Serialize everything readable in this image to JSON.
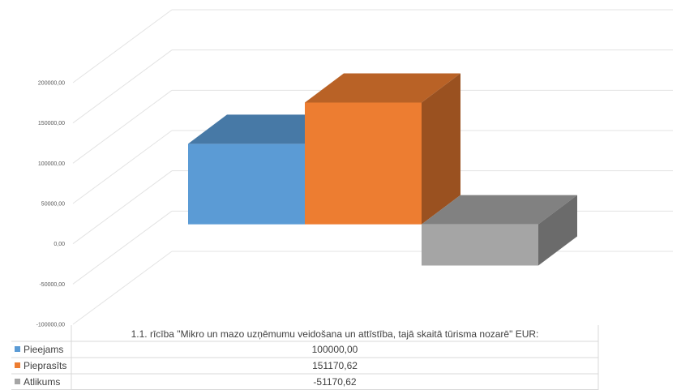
{
  "chart_data": {
    "type": "bar",
    "style": "3d-clustered-column-with-data-table",
    "category": "1.1. rīcība \"Mikro un mazo uzņēmumu veidošana un attīstība, tajā skaitā tūrisma nozarē\" EUR:",
    "series": [
      {
        "name": "Pieejams",
        "value": 100000.0,
        "label": "100000,00",
        "color": "#5b9bd5"
      },
      {
        "name": "Pieprasīts",
        "value": 151170.62,
        "label": "151170,62",
        "color": "#ed7d31"
      },
      {
        "name": "Atlikums",
        "value": -51170.62,
        "label": "-51170,62",
        "color": "#a5a5a5"
      }
    ],
    "ylim": [
      -100000,
      200000
    ],
    "y_ticks": [
      {
        "value": 200000,
        "label": "200000,00"
      },
      {
        "value": 150000,
        "label": "150000,00"
      },
      {
        "value": 100000,
        "label": "100000,00"
      },
      {
        "value": 50000,
        "label": "50000,00"
      },
      {
        "value": 0,
        "label": "0,00"
      },
      {
        "value": -50000,
        "label": "-50000,00"
      },
      {
        "value": -100000,
        "label": "-100000,00"
      }
    ],
    "grid": true,
    "legend": "data-table"
  }
}
